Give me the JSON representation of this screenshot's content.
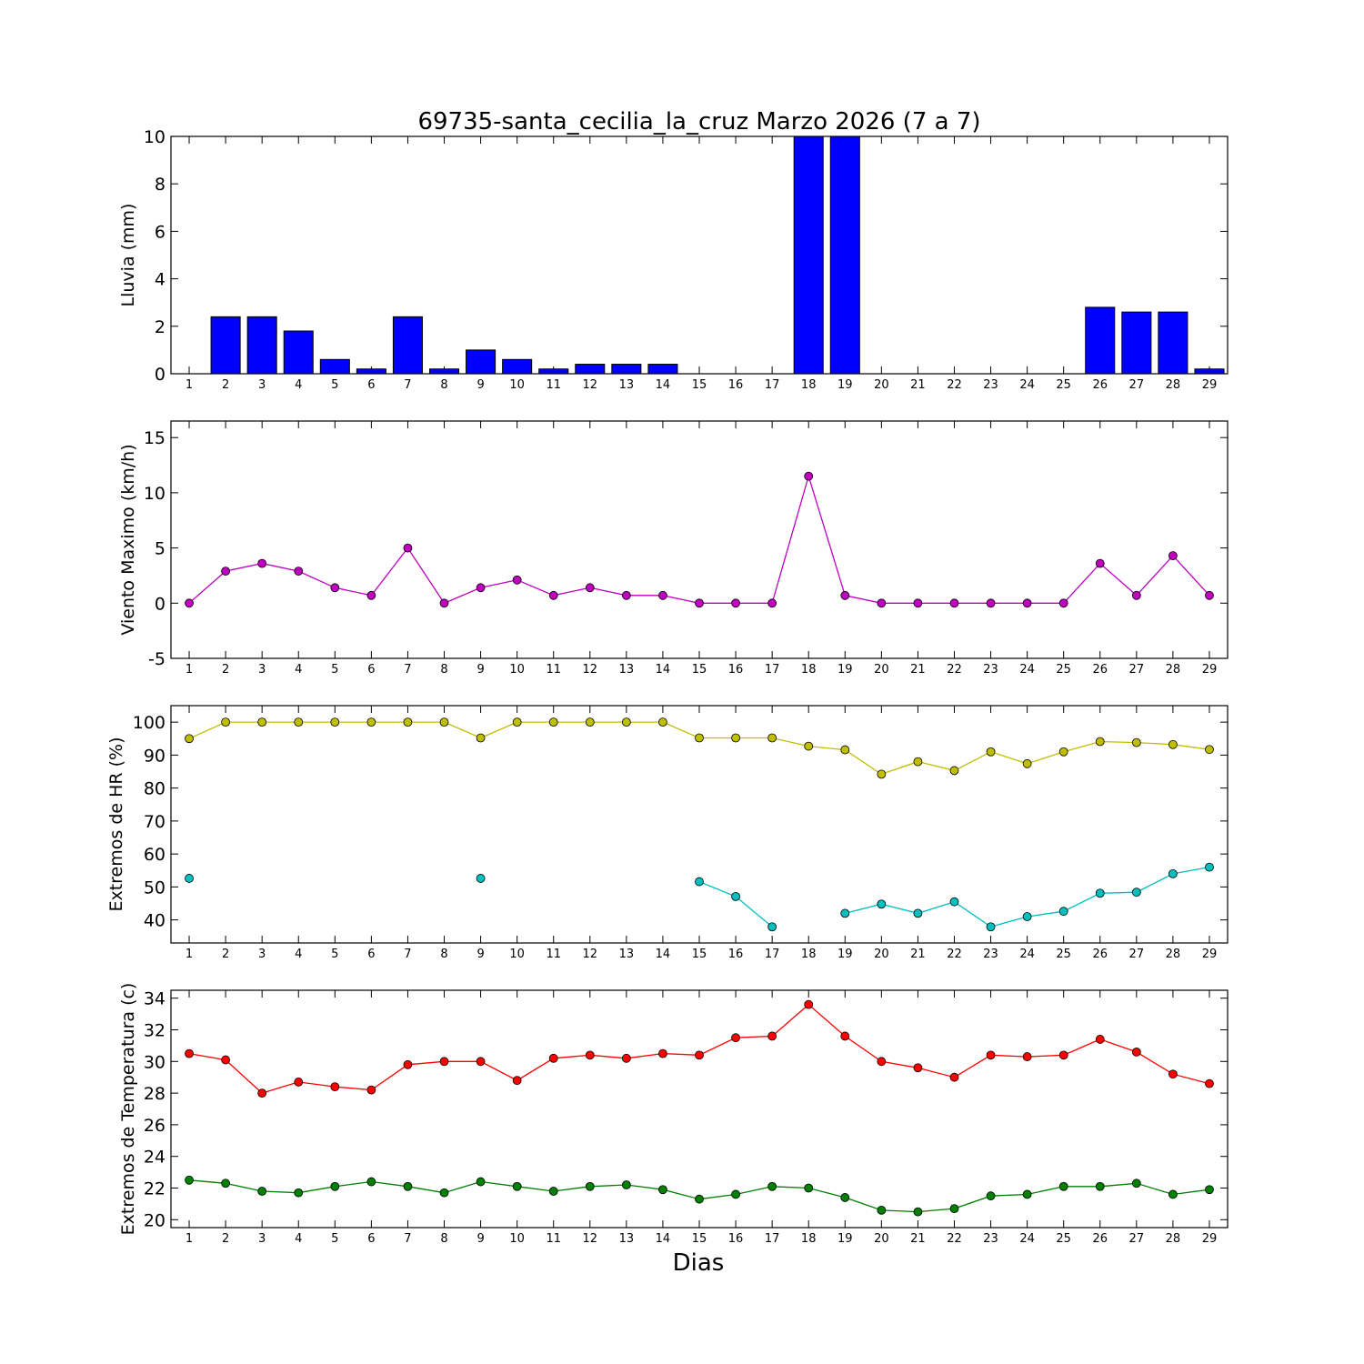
{
  "title": "69735-santa_cecilia_la_cruz Marzo 2026  (7 a 7)",
  "xlabel": "Dias",
  "days": [
    1,
    2,
    3,
    4,
    5,
    6,
    7,
    8,
    9,
    10,
    11,
    12,
    13,
    14,
    15,
    16,
    17,
    18,
    19,
    20,
    21,
    22,
    23,
    24,
    25,
    26,
    27,
    28,
    29
  ],
  "colors": {
    "rain": "#0000ff",
    "wind": "#bf00bf",
    "hr_max": "#bfbf00",
    "hr_min": "#00bfbf",
    "temp_max": "#ff0000",
    "temp_min": "#008000"
  },
  "chart_data": [
    {
      "type": "bar",
      "ylabel": "Lluvia (mm)",
      "ylim": [
        0,
        10
      ],
      "yticks": [
        0,
        2,
        4,
        6,
        8,
        10
      ],
      "series": [
        {
          "name": "Lluvia",
          "values": [
            0,
            2.4,
            2.4,
            1.8,
            0.6,
            0.2,
            2.4,
            0.2,
            1.0,
            0.6,
            0.2,
            0.4,
            0.4,
            0.4,
            0,
            0,
            0,
            10,
            10,
            0,
            0,
            0,
            0,
            0,
            0,
            2.8,
            2.6,
            2.6,
            0.2
          ]
        }
      ]
    },
    {
      "type": "line",
      "ylabel": "Viento Maximo (km/h)",
      "ylim": [
        -5,
        16.5
      ],
      "yticks": [
        -5,
        0,
        5,
        10,
        15
      ],
      "series": [
        {
          "name": "Viento Maximo",
          "values": [
            0,
            2.9,
            3.6,
            2.9,
            1.4,
            0.7,
            5.0,
            0,
            1.4,
            2.1,
            0.7,
            1.4,
            0.7,
            0.7,
            0,
            0,
            0,
            11.5,
            0.7,
            0,
            0,
            0,
            0,
            0,
            0,
            3.6,
            0.7,
            4.3,
            0.7
          ]
        }
      ]
    },
    {
      "type": "line",
      "ylabel": "Extremos de HR (%)",
      "ylim": [
        33,
        105
      ],
      "yticks": [
        40,
        50,
        60,
        70,
        80,
        90,
        100
      ],
      "series": [
        {
          "name": "HR max",
          "values": [
            95,
            100,
            100,
            100,
            100,
            100,
            100,
            100,
            95.2,
            100,
            100,
            100,
            100,
            100,
            95.2,
            95.2,
            95.2,
            92.7,
            91.6,
            84.2,
            88.0,
            85.3,
            91.0,
            87.4,
            91.0,
            94.1,
            93.8,
            93.2,
            91.7
          ]
        },
        {
          "name": "HR min",
          "values": [
            52.6,
            null,
            null,
            null,
            null,
            null,
            null,
            null,
            52.6,
            null,
            null,
            null,
            null,
            null,
            51.6,
            47.1,
            37.9,
            null,
            42.0,
            44.8,
            42.0,
            45.5,
            37.9,
            41.0,
            42.6,
            48.1,
            48.4,
            54.0,
            56.0
          ]
        }
      ]
    },
    {
      "type": "line",
      "ylabel": "Extremos de Temperatura (c)",
      "ylim": [
        19.5,
        34.5
      ],
      "yticks": [
        20,
        22,
        24,
        26,
        28,
        30,
        32,
        34
      ],
      "series": [
        {
          "name": "Temperatura max",
          "values": [
            30.5,
            30.1,
            28.0,
            28.7,
            28.4,
            28.2,
            29.8,
            30.0,
            30.0,
            28.8,
            30.2,
            30.4,
            30.2,
            30.5,
            30.4,
            31.5,
            31.6,
            33.6,
            31.6,
            30.0,
            29.6,
            29.0,
            30.4,
            30.3,
            30.4,
            31.4,
            30.6,
            29.2,
            28.6
          ]
        },
        {
          "name": "Temperatura min",
          "values": [
            22.5,
            22.3,
            21.8,
            21.7,
            22.1,
            22.4,
            22.1,
            21.7,
            22.4,
            22.1,
            21.8,
            22.1,
            22.2,
            21.9,
            21.3,
            21.6,
            22.1,
            22.0,
            21.4,
            20.6,
            20.5,
            20.7,
            21.5,
            21.6,
            22.1,
            22.1,
            22.3,
            21.6,
            21.9
          ]
        }
      ]
    }
  ]
}
